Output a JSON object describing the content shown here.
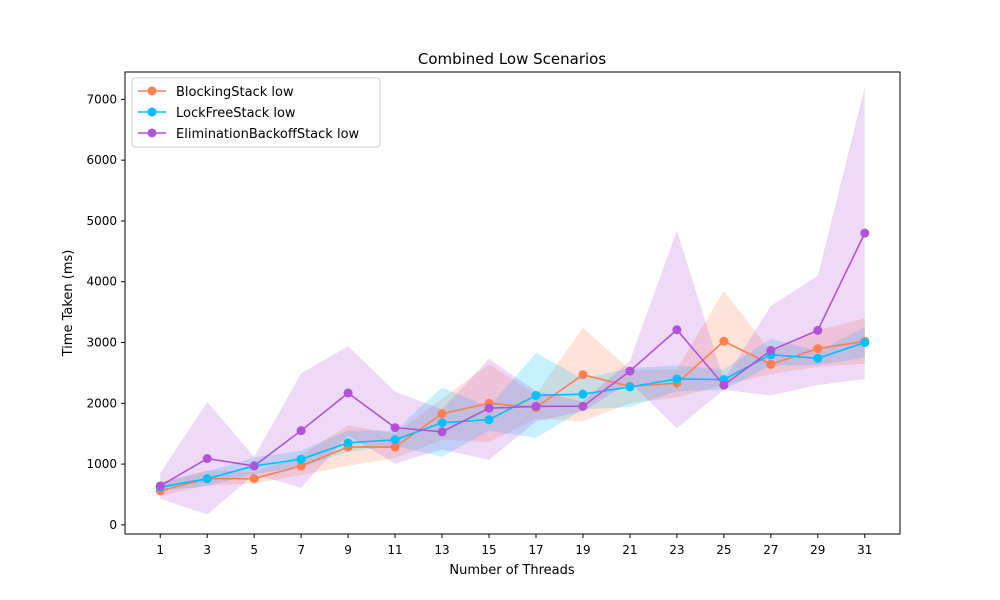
{
  "chart_data": {
    "type": "line",
    "title": "Combined Low Scenarios",
    "xlabel": "Number of Threads",
    "ylabel": "Time Taken (ms)",
    "x": [
      1,
      3,
      5,
      7,
      9,
      11,
      13,
      15,
      17,
      19,
      21,
      23,
      25,
      27,
      29,
      31
    ],
    "xlim": [
      -0.5,
      32.5
    ],
    "ylim": [
      -150,
      7450
    ],
    "yticks": [
      0,
      1000,
      2000,
      3000,
      4000,
      5000,
      6000,
      7000
    ],
    "grid": false,
    "legend_position": "top-left",
    "series": [
      {
        "name": "BlockingStack low",
        "color": "#ff7f50",
        "values": [
          560,
          760,
          760,
          970,
          1280,
          1280,
          1830,
          2000,
          1930,
          2470,
          2280,
          2330,
          3020,
          2640,
          2900,
          3020
        ],
        "band_lower": [
          480,
          650,
          680,
          820,
          970,
          1100,
          1400,
          1360,
          1750,
          1700,
          2000,
          2100,
          2300,
          2480,
          2600,
          2650
        ],
        "band_upper": [
          700,
          900,
          870,
          1150,
          1640,
          1500,
          2080,
          2640,
          2150,
          3240,
          2550,
          2560,
          3850,
          2850,
          3200,
          3400
        ]
      },
      {
        "name": "LockFreeStack low",
        "color": "#00bfff",
        "values": [
          620,
          760,
          970,
          1080,
          1350,
          1400,
          1680,
          1730,
          2130,
          2150,
          2270,
          2400,
          2390,
          2800,
          2740,
          3000
        ],
        "band_lower": [
          560,
          640,
          840,
          950,
          1200,
          1300,
          1120,
          1550,
          1430,
          1900,
          1940,
          2200,
          2220,
          2620,
          2630,
          2750
        ],
        "band_upper": [
          700,
          880,
          1110,
          1220,
          1550,
          1550,
          2260,
          1940,
          2830,
          2400,
          2580,
          2620,
          2560,
          3060,
          2860,
          3250
        ]
      },
      {
        "name": "EliminationBackoffStack low",
        "color": "#b153d7",
        "values": [
          640,
          1090,
          970,
          1550,
          2170,
          1600,
          1530,
          1920,
          1950,
          1950,
          2530,
          3210,
          2300,
          2870,
          3200,
          4800
        ],
        "band_lower": [
          430,
          170,
          830,
          610,
          1470,
          1010,
          1240,
          1070,
          1700,
          1870,
          2350,
          1590,
          2220,
          2130,
          2300,
          2400
        ],
        "band_upper": [
          850,
          2020,
          1120,
          2490,
          2940,
          2190,
          1900,
          2730,
          2200,
          2030,
          2700,
          4840,
          2380,
          3600,
          4100,
          7200
        ]
      }
    ]
  }
}
